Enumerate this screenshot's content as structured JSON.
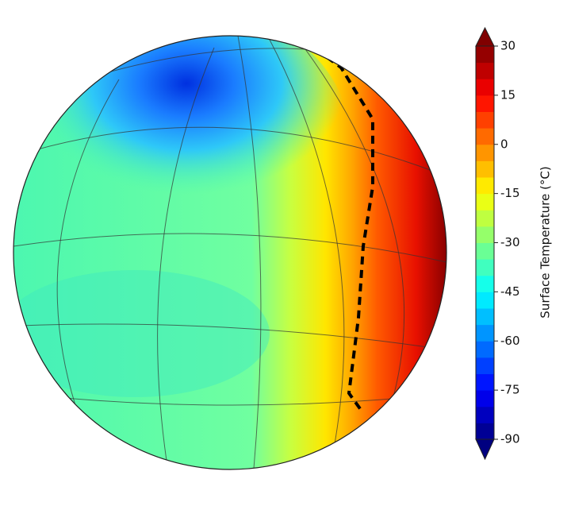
{
  "chart_data": {
    "type": "contour",
    "colorbar": {
      "label": "Surface Temperature (°C)",
      "lim": [
        -90,
        30
      ],
      "ticks": [
        -90,
        -75,
        -60,
        -45,
        -30,
        -15,
        0,
        15,
        30
      ],
      "colormap": "jet",
      "level_step": 5
    }
  }
}
